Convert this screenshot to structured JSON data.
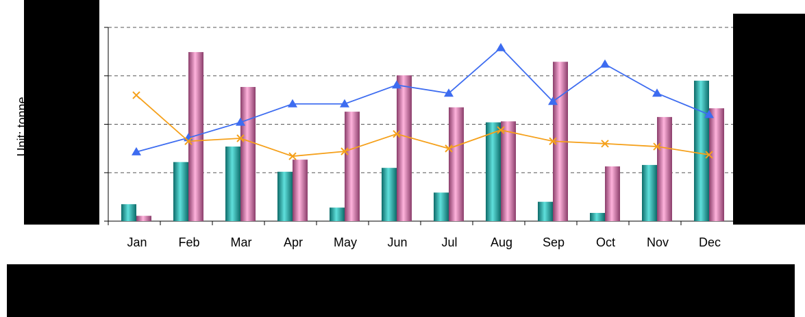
{
  "chart_data": {
    "type": "bar-line",
    "y_label": "Unit: tonne",
    "categories": [
      "Jan",
      "Feb",
      "Mar",
      "Apr",
      "May",
      "Jun",
      "Jul",
      "Aug",
      "Sep",
      "Oct",
      "Nov",
      "Dec"
    ],
    "ylim": [
      0,
      4
    ],
    "yticks": [
      0,
      1,
      2,
      3,
      4
    ],
    "grid": true,
    "series": [
      {
        "kind": "bar",
        "color": "#1fa3a0",
        "values": [
          0.35,
          1.22,
          1.54,
          1.02,
          0.28,
          1.1,
          0.59,
          2.04,
          0.4,
          0.17,
          1.16,
          2.9
        ]
      },
      {
        "kind": "bar",
        "color": "#e87fb4",
        "values": [
          0.11,
          3.49,
          2.77,
          1.27,
          2.26,
          3.01,
          2.35,
          2.06,
          3.29,
          1.13,
          2.15,
          2.33
        ]
      },
      {
        "kind": "line",
        "marker": "triangle",
        "color": "#3d6cf0",
        "values": [
          1.43,
          1.72,
          2.04,
          2.42,
          2.42,
          2.81,
          2.64,
          3.58,
          2.47,
          3.24,
          2.64,
          2.2
        ]
      },
      {
        "kind": "line",
        "marker": "x",
        "color": "#f5a01a",
        "values": [
          2.6,
          1.65,
          1.71,
          1.34,
          1.44,
          1.8,
          1.5,
          1.88,
          1.65,
          1.6,
          1.54,
          1.37
        ]
      }
    ]
  }
}
